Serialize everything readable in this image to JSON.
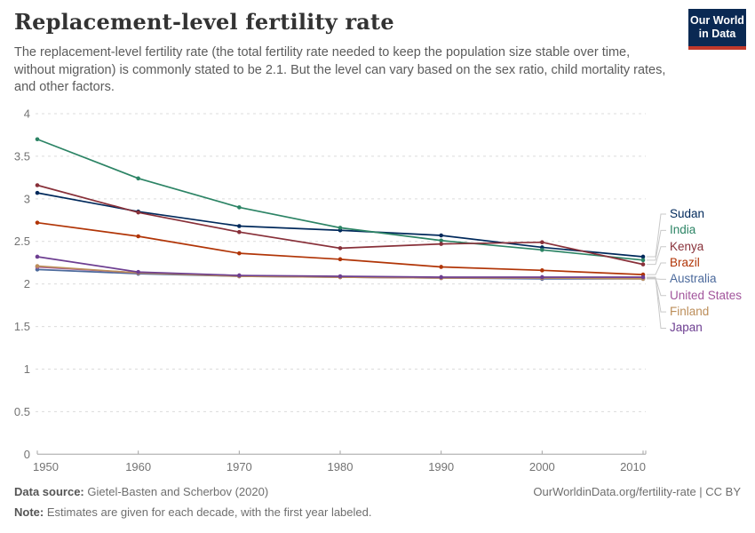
{
  "header": {
    "title": "Replacement-level fertility rate",
    "subtitle": "The replacement-level fertility rate (the total fertility rate needed to keep the population size stable over time, without migration) is commonly stated to be 2.1. But the level can vary based on the sex ratio, child mortality rates, and other factors.",
    "logo": {
      "line1": "Our World",
      "line2": "in Data",
      "bg_color": "#0A2953",
      "stripe_color": "#C0392B"
    }
  },
  "chart_data": {
    "type": "line",
    "title": "Replacement-level fertility rate",
    "x": [
      1950,
      1960,
      1970,
      1980,
      1990,
      2000,
      2010
    ],
    "xticks": [
      "1950",
      "1960",
      "1970",
      "1980",
      "1990",
      "2000",
      "2010"
    ],
    "yticks": [
      "0",
      "0.5",
      "1",
      "1.5",
      "2",
      "2.5",
      "3",
      "3.5",
      "4"
    ],
    "ytick_values": [
      0,
      0.5,
      1,
      1.5,
      2,
      2.5,
      3,
      3.5,
      4
    ],
    "ylim": [
      0,
      4
    ],
    "grid": "dashed-horizontal",
    "legend_position": "right",
    "series": [
      {
        "name": "Sudan",
        "color": "#00295B",
        "values": [
          3.07,
          2.85,
          2.68,
          2.63,
          2.57,
          2.43,
          2.32
        ]
      },
      {
        "name": "India",
        "color": "#2C8465",
        "values": [
          3.7,
          3.24,
          2.9,
          2.66,
          2.51,
          2.4,
          2.28
        ]
      },
      {
        "name": "Kenya",
        "color": "#883039",
        "values": [
          3.16,
          2.84,
          2.61,
          2.42,
          2.47,
          2.49,
          2.23
        ]
      },
      {
        "name": "Brazil",
        "color": "#B13507",
        "values": [
          2.72,
          2.56,
          2.36,
          2.29,
          2.2,
          2.16,
          2.11
        ]
      },
      {
        "name": "Australia",
        "color": "#4C6A9C",
        "values": [
          2.17,
          2.12,
          2.09,
          2.08,
          2.07,
          2.06,
          2.06
        ]
      },
      {
        "name": "United States",
        "color": "#A2559C",
        "values": [
          2.2,
          2.13,
          2.1,
          2.08,
          2.07,
          2.07,
          2.07
        ]
      },
      {
        "name": "Finland",
        "color": "#BC8E5A",
        "values": [
          2.21,
          2.13,
          2.09,
          2.08,
          2.07,
          2.07,
          2.06
        ]
      },
      {
        "name": "Japan",
        "color": "#6D3E91",
        "values": [
          2.32,
          2.14,
          2.1,
          2.09,
          2.08,
          2.08,
          2.08
        ]
      }
    ]
  },
  "footer": {
    "source_label": "Data source:",
    "source_text": "Gietel-Basten and Scherbov (2020)",
    "note_label": "Note:",
    "note_text": "Estimates are given for each decade, with the first year labeled.",
    "right_text": "OurWorldinData.org/fertility-rate | CC BY"
  }
}
